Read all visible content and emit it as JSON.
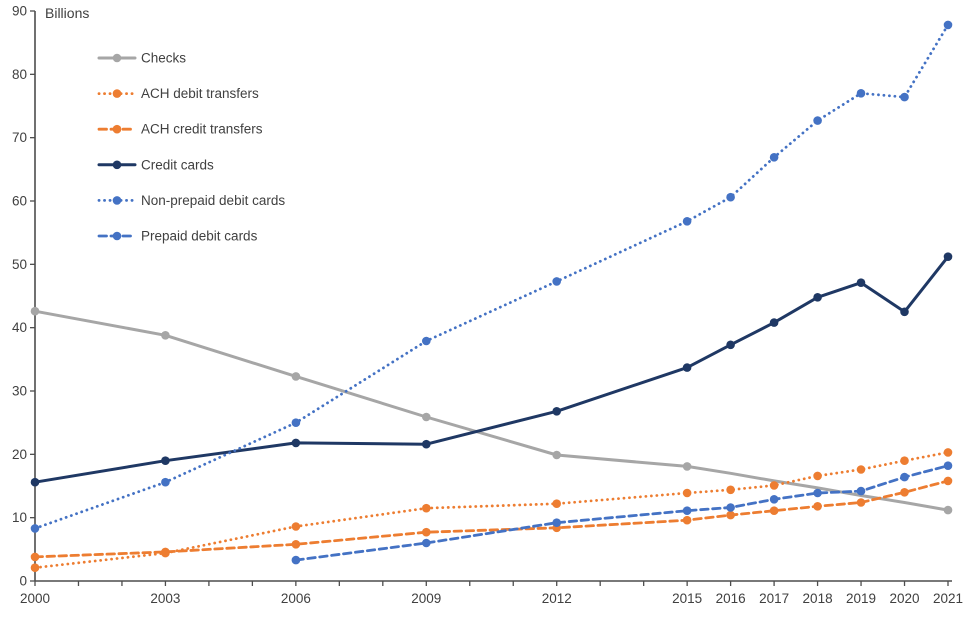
{
  "chart_data": {
    "type": "line",
    "title": "",
    "ylabel": "Billions",
    "xlabel": "",
    "ylim": [
      0,
      90
    ],
    "y_tick_step": 10,
    "x_range": [
      2000,
      2021
    ],
    "x_labeled_years": [
      2000,
      2003,
      2006,
      2009,
      2012,
      2015,
      2016,
      2017,
      2018,
      2019,
      2020,
      2021
    ],
    "grid": false,
    "legend_position": "top-left-inside",
    "categories": [
      2000,
      2003,
      2006,
      2009,
      2012,
      2015,
      2016,
      2017,
      2018,
      2019,
      2020,
      2021
    ],
    "series": [
      {
        "name": "Checks",
        "color": "#A6A6A6",
        "line_style": "solid",
        "values": [
          42.6,
          38.8,
          32.3,
          25.9,
          19.9,
          18.1,
          17.0,
          15.8,
          14.7,
          13.5,
          12.4,
          11.2
        ],
        "marker_years": [
          2000,
          2003,
          2006,
          2009,
          2012,
          2015,
          2021
        ]
      },
      {
        "name": "ACH debit transfers",
        "color": "#ED7D31",
        "line_style": "dotted",
        "values": [
          2.1,
          4.4,
          8.6,
          11.5,
          12.2,
          13.9,
          14.4,
          15.1,
          16.6,
          17.6,
          19.0,
          20.3
        ]
      },
      {
        "name": "ACH credit transfers",
        "color": "#ED7D31",
        "line_style": "dashed",
        "values": [
          3.8,
          4.6,
          5.8,
          7.7,
          8.4,
          9.6,
          10.4,
          11.1,
          11.8,
          12.4,
          14.0,
          15.8
        ]
      },
      {
        "name": "Credit cards",
        "color": "#1F3864",
        "line_style": "solid",
        "values": [
          15.6,
          19.0,
          21.8,
          21.6,
          26.8,
          33.7,
          37.3,
          40.8,
          44.8,
          47.1,
          42.5,
          51.2
        ]
      },
      {
        "name": "Non-prepaid debit cards",
        "color": "#4472C4",
        "line_style": "dotted",
        "values": [
          8.3,
          15.6,
          25.0,
          37.9,
          47.3,
          56.8,
          60.6,
          66.9,
          72.7,
          77.0,
          76.4,
          87.8
        ]
      },
      {
        "name": "Prepaid debit cards",
        "color": "#4472C4",
        "line_style": "dashed",
        "values": [
          null,
          null,
          3.3,
          6.0,
          9.2,
          11.1,
          11.6,
          12.9,
          13.9,
          14.2,
          16.4,
          18.2
        ]
      }
    ]
  }
}
